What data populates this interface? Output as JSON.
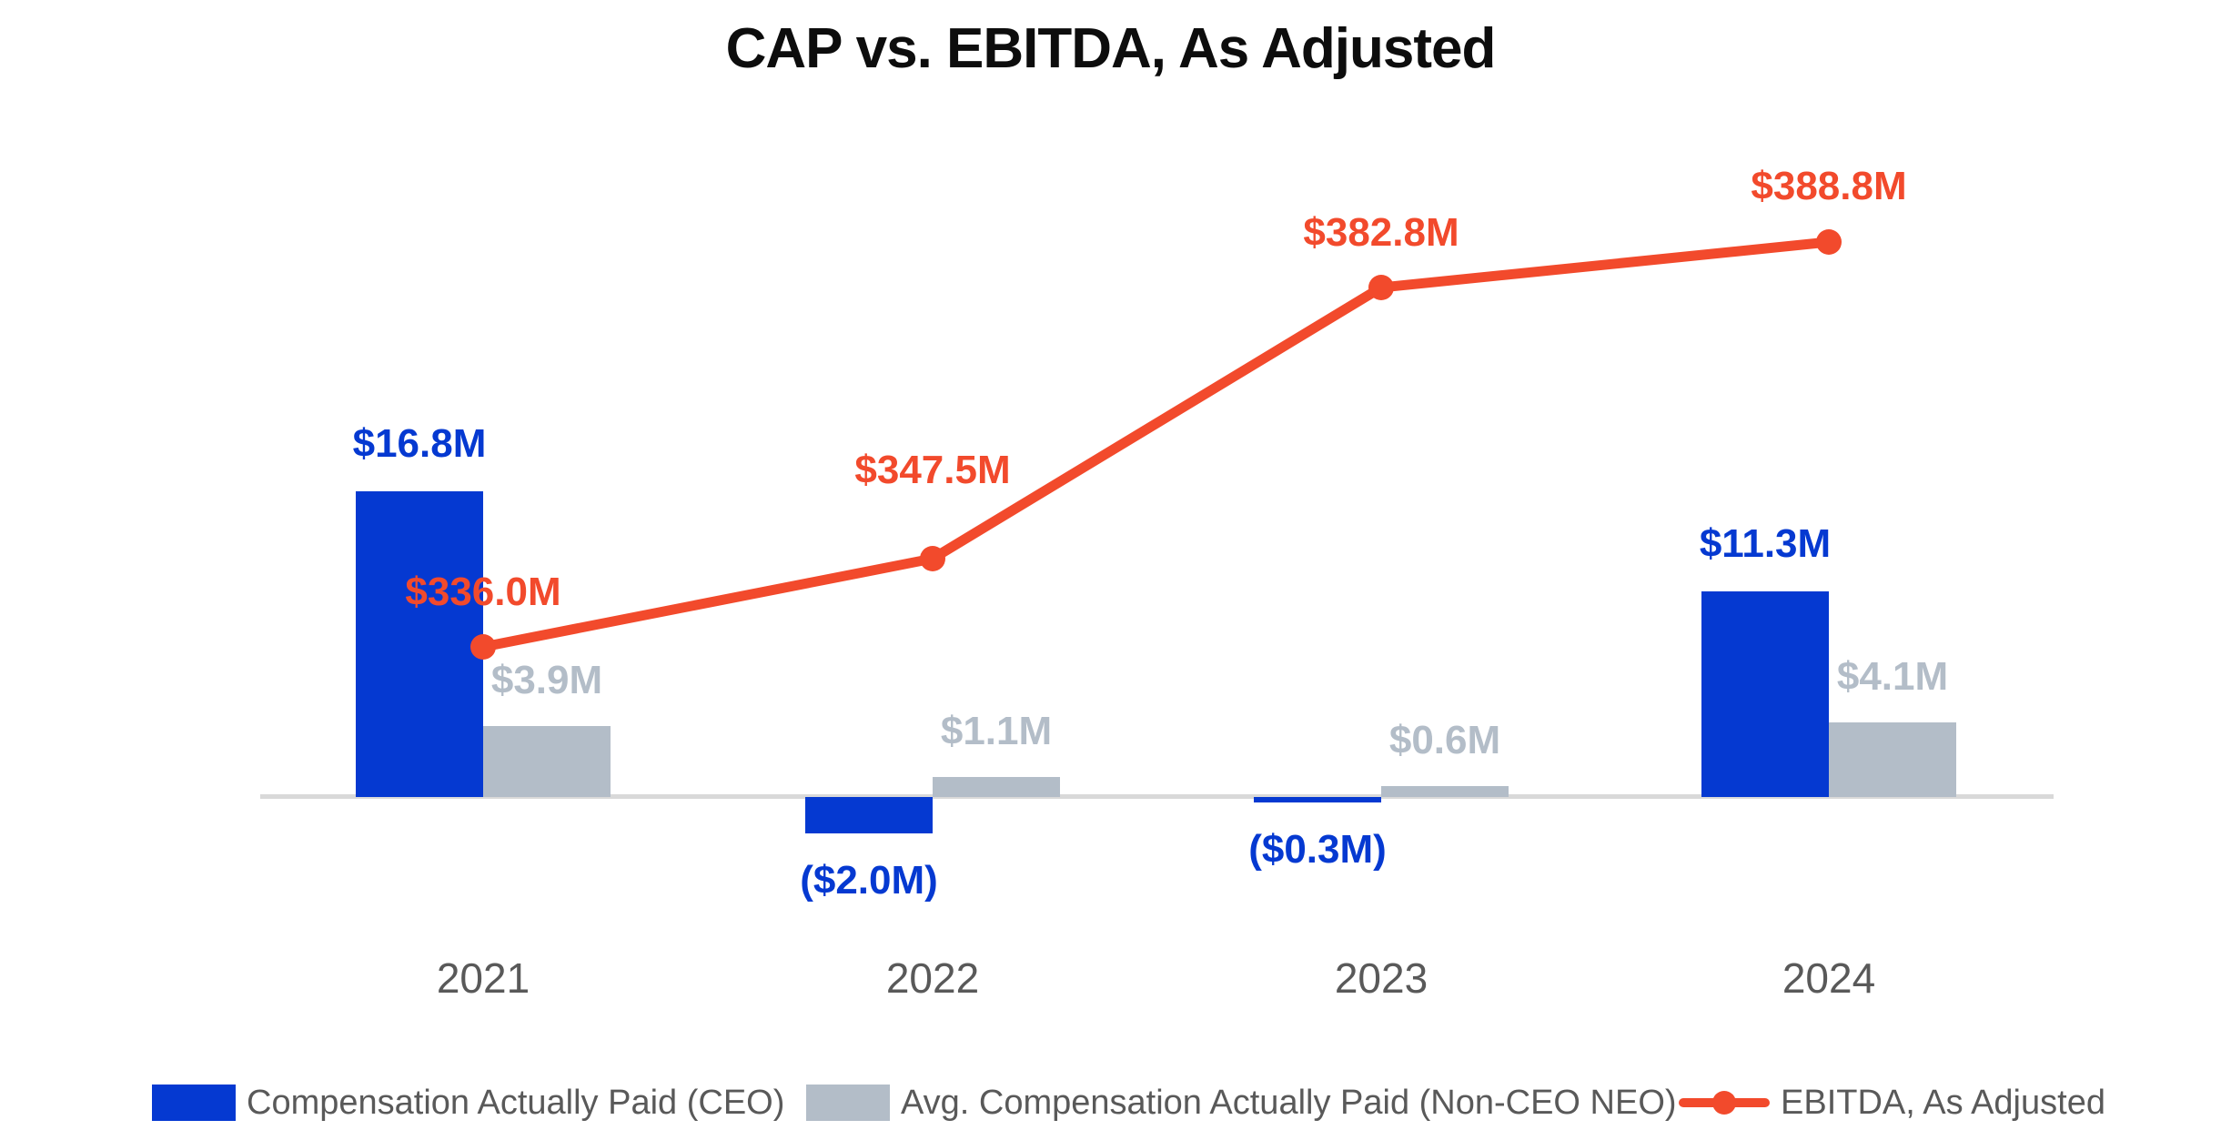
{
  "title": "CAP vs. EBITDA, As Adjusted",
  "colors": {
    "ceo_bar_blue": "#0539d1",
    "neo_bar_gray": "#b3bdc8",
    "ebitda_line_red": "#f24a2c",
    "axis_gray": "#d9d9d9",
    "text_gray": "#595959",
    "title_black": "#0d0d0d"
  },
  "chart_data": {
    "type": "combo-bar-line",
    "title": "CAP vs. EBITDA, As Adjusted",
    "categories": [
      "2021",
      "2022",
      "2023",
      "2024"
    ],
    "grid": "off",
    "y_axis_ticks": "none (data labels only)",
    "legend_position": "bottom",
    "series": [
      {
        "name": "Compensation Actually Paid (CEO)",
        "type": "bar",
        "unit": "USD millions",
        "color": "#0539d1",
        "values": [
          16.8,
          -2.0,
          -0.3,
          11.3
        ],
        "labels": [
          "$16.8M",
          "($2.0M)",
          "($0.3M)",
          "$11.3M"
        ]
      },
      {
        "name": "Avg. Compensation Actually Paid (Non-CEO NEO)",
        "type": "bar",
        "unit": "USD millions",
        "color": "#b3bdc8",
        "values": [
          3.9,
          1.1,
          0.6,
          4.1
        ],
        "labels": [
          "$3.9M",
          "$1.1M",
          "$0.6M",
          "$4.1M"
        ]
      },
      {
        "name": "EBITDA, As Adjusted",
        "type": "line",
        "unit": "USD millions",
        "color": "#f24a2c",
        "marker": "circle",
        "values": [
          336.0,
          347.5,
          382.8,
          388.8
        ],
        "labels": [
          "$336.0M",
          "$347.5M",
          "$382.8M",
          "$388.8M"
        ]
      }
    ]
  },
  "legend": {
    "items": [
      {
        "label": "Compensation Actually Paid (CEO)",
        "swatch": "blue-rect"
      },
      {
        "label": "Avg. Compensation Actually Paid (Non-CEO NEO)",
        "swatch": "gray-rect"
      },
      {
        "label": "EBITDA, As Adjusted",
        "swatch": "red-line-dot"
      }
    ]
  }
}
